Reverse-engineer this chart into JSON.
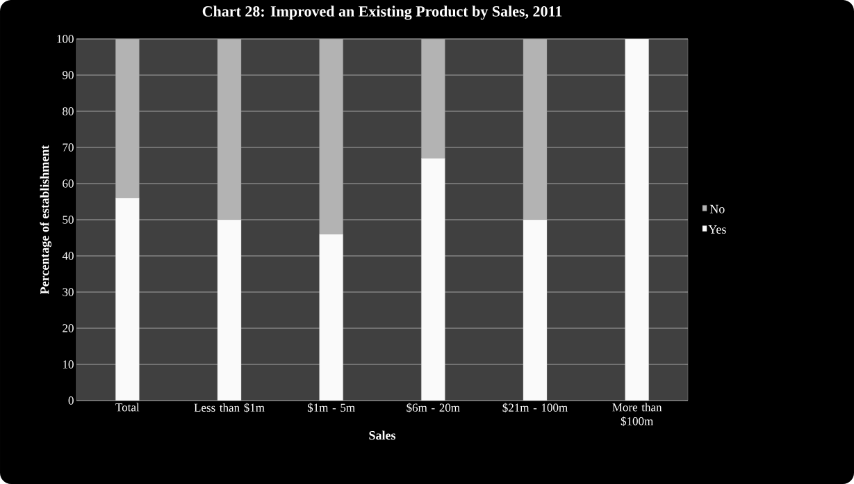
{
  "chart_data": {
    "type": "bar",
    "title": "Chart 28: Improved an Existing Product by Sales, 2011",
    "xlabel": "Sales",
    "ylabel": "Percentage of establishment",
    "categories": [
      "Total",
      "Less than $1m",
      "$1m - 5m",
      "$6m - 20m",
      "$21m - 100m",
      "More than $100m"
    ],
    "series": [
      {
        "name": "Yes",
        "color": "#fafafa",
        "values": [
          56,
          50,
          46,
          67,
          50,
          100
        ]
      },
      {
        "name": "No",
        "color": "#b3b3b3",
        "values": [
          44,
          50,
          54,
          33,
          50,
          0
        ]
      }
    ],
    "stacked": true,
    "ylim": [
      0,
      100
    ],
    "yticks": [
      0,
      10,
      20,
      30,
      40,
      50,
      60,
      70,
      80,
      90,
      100
    ],
    "grid": "y",
    "legend": "right"
  }
}
